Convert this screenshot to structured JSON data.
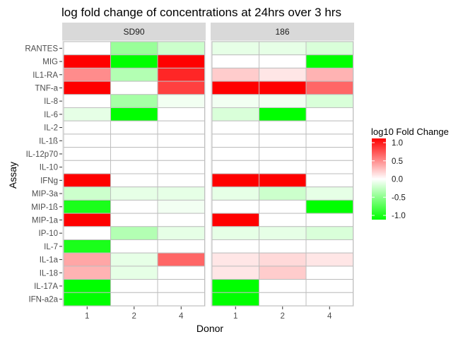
{
  "chart_data": {
    "type": "heatmap",
    "title": "log fold change of concentrations at 24hrs over 3 hrs",
    "xlabel": "Donor",
    "ylabel": "Assay",
    "panels": [
      "SD90",
      "186"
    ],
    "x": [
      "1",
      "2",
      "4"
    ],
    "y": [
      "RANTES",
      "MIG",
      "IL1-RA",
      "TNF-a",
      "IL-8",
      "IL-6",
      "IL-2",
      "IL-1ß",
      "IL-12p70",
      "IL-10",
      "IFNg",
      "MIP-3a",
      "MIP-1ß",
      "MIP-1a",
      "IP-10",
      "IL-7",
      "IL-1a",
      "IL-18",
      "IL-17A",
      "IFN-a2a"
    ],
    "values": {
      "SD90": [
        [
          0.0,
          -0.4,
          -0.2
        ],
        [
          1.0,
          -1.0,
          1.0
        ],
        [
          0.45,
          -0.3,
          0.85
        ],
        [
          1.0,
          0.0,
          0.75
        ],
        [
          0.0,
          -0.35,
          -0.05
        ],
        [
          -0.1,
          -1.0,
          0.0
        ],
        [
          0.0,
          0.0,
          0.0
        ],
        [
          0.0,
          0.0,
          0.0
        ],
        [
          0.0,
          0.0,
          0.0
        ],
        [
          0.0,
          0.0,
          0.0
        ],
        [
          1.0,
          0.0,
          0.0
        ],
        [
          -0.2,
          -0.1,
          -0.1
        ],
        [
          -0.9,
          0.0,
          -0.05
        ],
        [
          1.0,
          0.0,
          0.0
        ],
        [
          0.0,
          -0.3,
          -0.1
        ],
        [
          -0.9,
          0.0,
          0.0
        ],
        [
          0.35,
          -0.1,
          0.6
        ],
        [
          0.3,
          -0.1,
          0.0
        ],
        [
          -1.0,
          0.0,
          0.0
        ],
        [
          -1.0,
          0.0,
          0.0
        ]
      ],
      "186": [
        [
          -0.1,
          -0.1,
          -0.15
        ],
        [
          0.0,
          0.0,
          -1.0
        ],
        [
          0.2,
          0.1,
          0.3
        ],
        [
          1.0,
          1.0,
          0.6
        ],
        [
          -0.05,
          -0.05,
          -0.15
        ],
        [
          -0.15,
          -1.0,
          0.0
        ],
        [
          0.0,
          0.0,
          0.0
        ],
        [
          0.0,
          0.0,
          0.0
        ],
        [
          0.0,
          0.0,
          0.0
        ],
        [
          0.0,
          0.0,
          0.0
        ],
        [
          1.0,
          1.0,
          0.0
        ],
        [
          -0.1,
          -0.2,
          -0.1
        ],
        [
          0.0,
          0.0,
          -1.0
        ],
        [
          1.0,
          0.0,
          0.0
        ],
        [
          -0.1,
          -0.1,
          -0.15
        ],
        [
          0.0,
          0.0,
          0.0
        ],
        [
          0.1,
          0.15,
          0.1
        ],
        [
          0.1,
          0.2,
          0.0
        ],
        [
          -1.0,
          0.0,
          0.0
        ],
        [
          -1.0,
          0.0,
          0.0
        ]
      ]
    },
    "legend": {
      "title": "log10 Fold Change",
      "range": [
        -1.0,
        1.0
      ],
      "breaks": [
        "1.0",
        "0.5",
        "0.0",
        "-0.5",
        "-1.0"
      ],
      "break_values": [
        1.0,
        0.5,
        0.0,
        -0.5,
        -1.0
      ],
      "placement": "right"
    },
    "colors": {
      "low": "#00ff00",
      "mid": "#ffffff",
      "high": "#ff0000",
      "panel_background": "#ebebeb",
      "strip_background": "#d9d9d9",
      "tile_border": "#bebebe"
    }
  }
}
